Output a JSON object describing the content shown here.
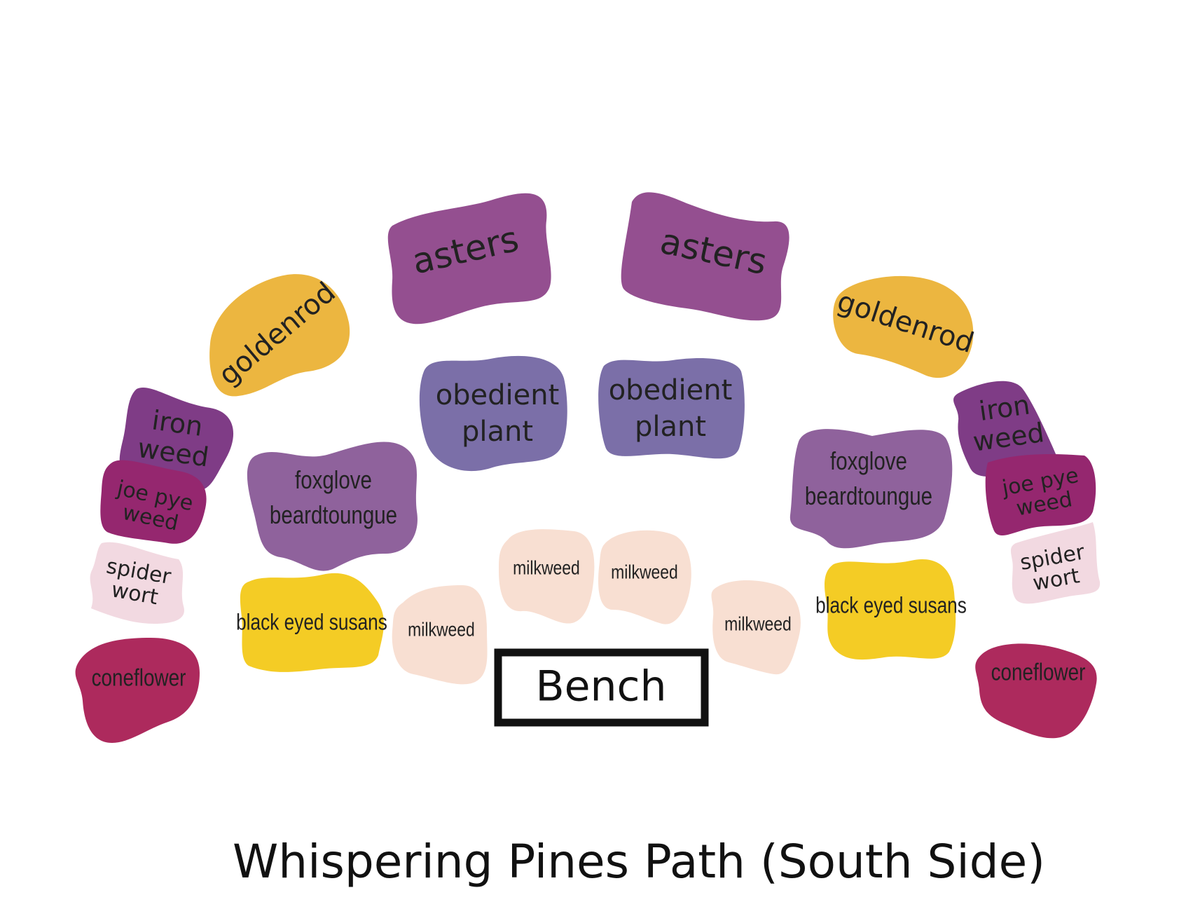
{
  "title": "Whispering Pines Path (South Side)",
  "bench": {
    "label": "Bench"
  },
  "colors": {
    "asters": "#944f90",
    "goldenrod": "#ecb640",
    "obedient_plant": "#7b6fa8",
    "iron_weed": "#7f3c86",
    "joe_pye_weed": "#95276f",
    "spider_wort": "#f2d9e1",
    "coneflower": "#ad2a5d",
    "foxglove": "#8f629c",
    "black_eyed_susans": "#f4cc25",
    "milkweed": "#f8dfd2"
  },
  "beds": [
    {
      "id": "asters-left",
      "plant": "asters",
      "lines": [
        "asters"
      ],
      "color_key": "asters"
    },
    {
      "id": "asters-right",
      "plant": "asters",
      "lines": [
        "asters"
      ],
      "color_key": "asters"
    },
    {
      "id": "goldenrod-left",
      "plant": "goldenrod",
      "lines": [
        "goldenrod"
      ],
      "color_key": "goldenrod"
    },
    {
      "id": "goldenrod-right",
      "plant": "goldenrod",
      "lines": [
        "goldenrod"
      ],
      "color_key": "goldenrod"
    },
    {
      "id": "obedient-left",
      "plant": "obedient plant",
      "lines": [
        "obedient",
        "plant"
      ],
      "color_key": "obedient_plant"
    },
    {
      "id": "obedient-right",
      "plant": "obedient plant",
      "lines": [
        "obedient",
        "plant"
      ],
      "color_key": "obedient_plant"
    },
    {
      "id": "ironweed-left",
      "plant": "iron weed",
      "lines": [
        "iron",
        "weed"
      ],
      "color_key": "iron_weed"
    },
    {
      "id": "ironweed-right",
      "plant": "iron weed",
      "lines": [
        "iron",
        "weed"
      ],
      "color_key": "iron_weed"
    },
    {
      "id": "joepye-left",
      "plant": "joe pye weed",
      "lines": [
        "joe pye",
        "weed"
      ],
      "color_key": "joe_pye_weed"
    },
    {
      "id": "joepye-right",
      "plant": "joe pye weed",
      "lines": [
        "joe pye",
        "weed"
      ],
      "color_key": "joe_pye_weed"
    },
    {
      "id": "spiderwort-left",
      "plant": "spider wort",
      "lines": [
        "spider",
        "wort"
      ],
      "color_key": "spider_wort"
    },
    {
      "id": "spiderwort-right",
      "plant": "spider wort",
      "lines": [
        "spider",
        "wort"
      ],
      "color_key": "spider_wort"
    },
    {
      "id": "coneflower-left",
      "plant": "coneflower",
      "lines": [
        "coneflower"
      ],
      "color_key": "coneflower"
    },
    {
      "id": "coneflower-right",
      "plant": "coneflower",
      "lines": [
        "coneflower"
      ],
      "color_key": "coneflower"
    },
    {
      "id": "foxglove-left",
      "plant": "foxglove beardtoungue",
      "lines": [
        "foxglove",
        "beardtoungue"
      ],
      "color_key": "foxglove"
    },
    {
      "id": "foxglove-right",
      "plant": "foxglove beardtoungue",
      "lines": [
        "foxglove",
        "beardtoungue"
      ],
      "color_key": "foxglove"
    },
    {
      "id": "susans-left",
      "plant": "black eyed susans",
      "lines": [
        "black eyed susans"
      ],
      "color_key": "black_eyed_susans"
    },
    {
      "id": "susans-right",
      "plant": "black eyed susans",
      "lines": [
        "black eyed susans"
      ],
      "color_key": "black_eyed_susans"
    },
    {
      "id": "milkweed-1",
      "plant": "milkweed",
      "lines": [
        "milkweed"
      ],
      "color_key": "milkweed"
    },
    {
      "id": "milkweed-2",
      "plant": "milkweed",
      "lines": [
        "milkweed"
      ],
      "color_key": "milkweed"
    },
    {
      "id": "milkweed-3",
      "plant": "milkweed",
      "lines": [
        "milkweed"
      ],
      "color_key": "milkweed"
    },
    {
      "id": "milkweed-4",
      "plant": "milkweed",
      "lines": [
        "milkweed"
      ],
      "color_key": "milkweed"
    }
  ]
}
